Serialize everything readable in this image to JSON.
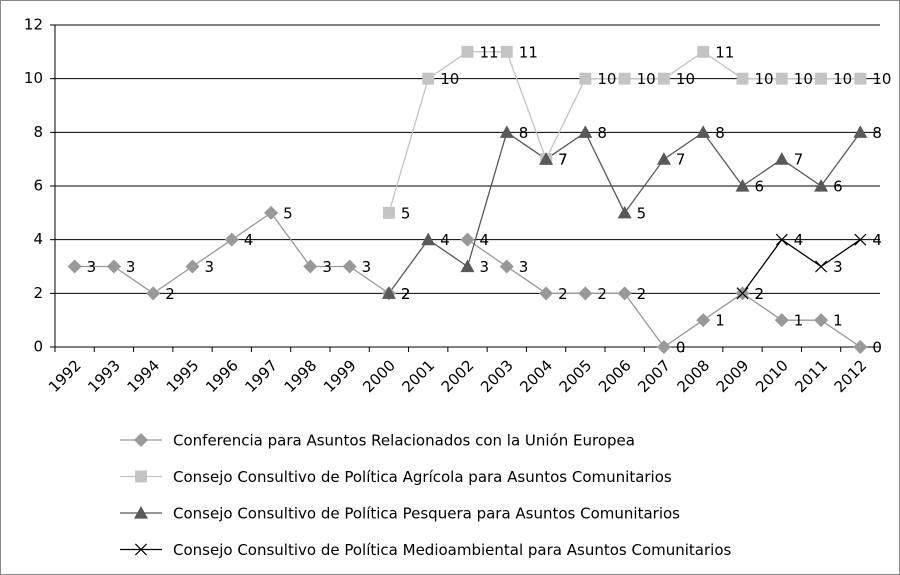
{
  "chart_data": {
    "type": "line",
    "categories": [
      "1992",
      "1993",
      "1994",
      "1995",
      "1996",
      "1997",
      "1998",
      "1999",
      "2000",
      "2001",
      "2002",
      "2003",
      "2004",
      "2005",
      "2006",
      "2007",
      "2008",
      "2009",
      "2010",
      "2011",
      "2012"
    ],
    "series": [
      {
        "name": "Conferencia para Asuntos Relacionados con la Unión Europea",
        "color": "#999999",
        "marker": "diamond",
        "values": [
          3,
          3,
          2,
          3,
          4,
          5,
          3,
          3,
          2,
          null,
          4,
          3,
          2,
          2,
          2,
          0,
          1,
          2,
          1,
          1,
          0
        ]
      },
      {
        "name": "Consejo Consultivo de Política Agrícola para Asuntos Comunitarios",
        "color": "#c4c4c4",
        "marker": "square",
        "values": [
          null,
          null,
          null,
          null,
          null,
          null,
          null,
          null,
          5,
          10,
          11,
          11,
          7,
          10,
          10,
          10,
          11,
          10,
          10,
          10,
          10
        ]
      },
      {
        "name": "Consejo Consultivo de Política Pesquera para Asuntos Comunitarios",
        "color": "#595959",
        "marker": "triangle",
        "values": [
          null,
          null,
          null,
          null,
          null,
          null,
          null,
          null,
          2,
          4,
          3,
          8,
          7,
          8,
          5,
          7,
          8,
          6,
          7,
          6,
          8
        ]
      },
      {
        "name": "Consejo Consultivo de Política Medioambiental para Asuntos Comunitarios",
        "color": "#000000",
        "marker": "x",
        "values": [
          null,
          null,
          null,
          null,
          null,
          null,
          null,
          null,
          null,
          null,
          null,
          null,
          null,
          null,
          null,
          null,
          null,
          2,
          4,
          3,
          4
        ]
      }
    ],
    "ylim": [
      0,
      12
    ],
    "yticks": [
      0,
      2,
      4,
      6,
      8,
      10,
      12
    ],
    "grid": true
  }
}
